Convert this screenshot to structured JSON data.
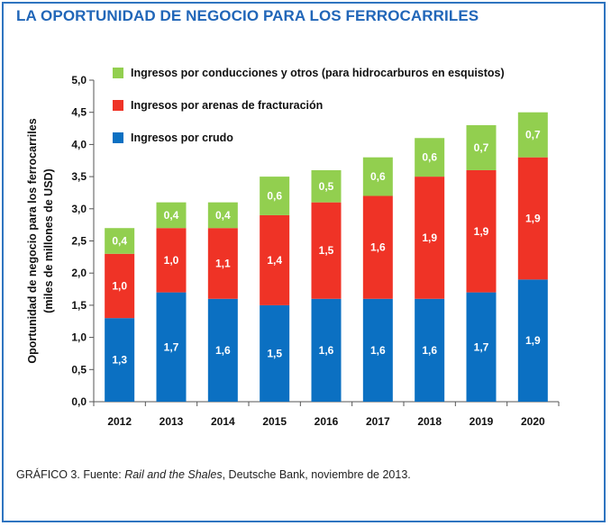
{
  "title": "LA OPORTUNIDAD DE NEGOCIO PARA LOS FERROCARRILES",
  "caption": {
    "prefix": "GRÁFICO 3. Fuente: ",
    "italic": "Rail and the Shales",
    "suffix": ", Deutsche Bank, noviembre de 2013."
  },
  "chart_data": {
    "type": "bar",
    "stacked": true,
    "categories": [
      "2012",
      "2013",
      "2014",
      "2015",
      "2016",
      "2017",
      "2018",
      "2019",
      "2020"
    ],
    "series": [
      {
        "name": "Ingresos por crudo",
        "color": "#0b70c2",
        "values": [
          1.3,
          1.7,
          1.6,
          1.5,
          1.6,
          1.6,
          1.6,
          1.7,
          1.9
        ],
        "labels": [
          "1,3",
          "1,7",
          "1,6",
          "1,5",
          "1,6",
          "1,6",
          "1,6",
          "1,7",
          "1,9"
        ]
      },
      {
        "name": "Ingresos por arenas de fracturación",
        "color": "#ef3326",
        "values": [
          1.0,
          1.0,
          1.1,
          1.4,
          1.5,
          1.6,
          1.9,
          1.9,
          1.9
        ],
        "labels": [
          "1,0",
          "1,0",
          "1,1",
          "1,4",
          "1,5",
          "1,6",
          "1,9",
          "1,9",
          "1,9"
        ]
      },
      {
        "name": "Ingresos por conducciones y otros (para hidrocarburos en esquistos)",
        "color": "#92cf4f",
        "values": [
          0.4,
          0.4,
          0.4,
          0.6,
          0.5,
          0.6,
          0.6,
          0.7,
          0.7
        ],
        "labels": [
          "0,4",
          "0,4",
          "0,4",
          "0,6",
          "0,5",
          "0,6",
          "0,6",
          "0,7",
          "0,7"
        ]
      }
    ],
    "ylabel": [
      "Oportunidad de negocio para los ferrocarriles",
      "(miles de millones de USD)"
    ],
    "xlabel": "",
    "ylim": [
      0,
      5
    ],
    "yticks": [
      0,
      0.5,
      1.0,
      1.5,
      2.0,
      2.5,
      3.0,
      3.5,
      4.0,
      4.5,
      5.0
    ],
    "ytick_labels": [
      "0,0",
      "0,5",
      "1,0",
      "1,5",
      "2,0",
      "2,5",
      "3,0",
      "3,5",
      "4,0",
      "4,5",
      "5,0"
    ],
    "grid": false,
    "legend_position": "top-right",
    "legend_order": [
      2,
      1,
      0
    ]
  }
}
